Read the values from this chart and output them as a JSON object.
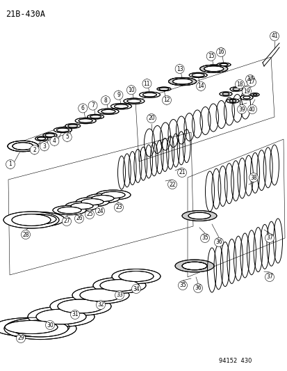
{
  "title": "21B-430A",
  "footer": "94152  430",
  "bg_color": "#ffffff",
  "fig_width": 4.14,
  "fig_height": 5.33,
  "dpi": 100,
  "lw": 0.7,
  "lw_thin": 0.4,
  "label_fs": 5.5,
  "title_fs": 8.5
}
